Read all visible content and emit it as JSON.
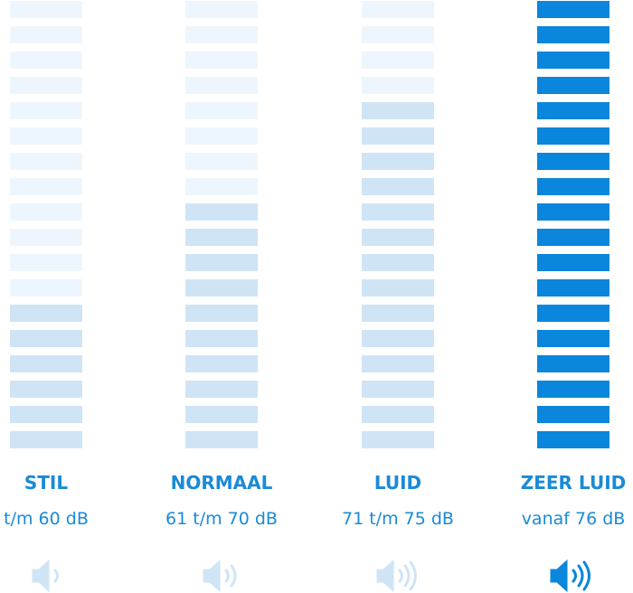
{
  "segments": 18,
  "empty_color": "#eef6fd",
  "levels": [
    {
      "label": "STIL",
      "range": "t/m 60 dB",
      "filled": 6,
      "color": "#cfe5f6"
    },
    {
      "label": "NORMAAL",
      "range": "61 t/m 70 dB",
      "filled": 10,
      "color": "#cfe5f6"
    },
    {
      "label": "LUID",
      "range": "71 t/m 75 dB",
      "filled": 14,
      "color": "#cfe5f6"
    },
    {
      "label": "ZEER LUID",
      "range": "vanaf 76 dB",
      "filled": 18,
      "color": "#0a86dc"
    }
  ]
}
